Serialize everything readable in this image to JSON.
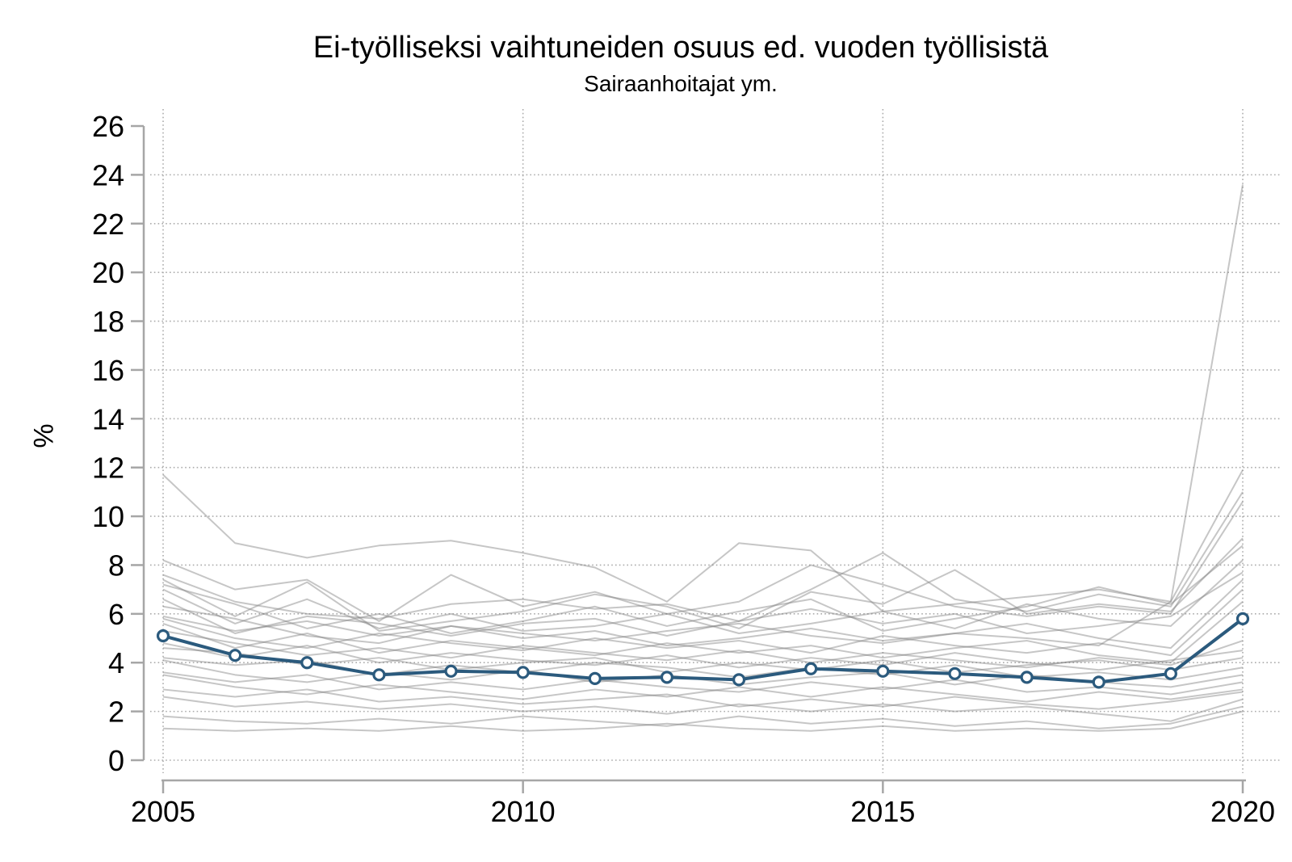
{
  "page": {
    "background": "#ffffff"
  },
  "chart_data": {
    "type": "line",
    "title": "Ei-työlliseksi vaihtuneiden osuus ed. vuoden työllisistä",
    "subtitle": "Sairaanhoitajat ym.",
    "ylabel": "%",
    "xlabel": "",
    "x": [
      2005,
      2006,
      2007,
      2008,
      2009,
      2010,
      2011,
      2012,
      2013,
      2014,
      2015,
      2016,
      2017,
      2018,
      2019,
      2020
    ],
    "x_tick_years": [
      2005,
      2010,
      2015,
      2020
    ],
    "x_tick_labels": [
      "2005",
      "2010",
      "2015",
      "2020"
    ],
    "y_ticks": [
      0,
      2,
      4,
      6,
      8,
      10,
      12,
      14,
      16,
      18,
      20,
      22,
      24,
      26
    ],
    "ylim": [
      0,
      26
    ],
    "xlim": [
      2005,
      2020
    ],
    "grid": "dotted",
    "legend_position": "none",
    "colors": {
      "highlight": "#2b5a7d",
      "background_lines": "#808080",
      "axis": "#a6a6a6",
      "grid_dots": "#ababab",
      "text": "#000000",
      "marker_fill": "#ffffff"
    },
    "highlight_series": {
      "name": "Sairaanhoitajat ym.",
      "values": [
        5.1,
        4.3,
        4.0,
        3.5,
        3.65,
        3.6,
        3.35,
        3.4,
        3.3,
        3.75,
        3.65,
        3.55,
        3.4,
        3.2,
        3.55,
        5.8
      ]
    },
    "background_series": [
      [
        11.7,
        8.9,
        8.3,
        8.8,
        9.0,
        8.5,
        7.9,
        6.5,
        8.9,
        8.6,
        6.1,
        6.4,
        6.7,
        7.0,
        6.5,
        11.9
      ],
      [
        5.9,
        5.3,
        5.7,
        5.1,
        5.5,
        5.2,
        4.9,
        5.3,
        5.6,
        5.1,
        4.8,
        5.2,
        5.0,
        4.7,
        6.5,
        23.6
      ],
      [
        8.2,
        7.0,
        7.4,
        5.7,
        7.6,
        6.3,
        6.9,
        6.0,
        6.5,
        8.0,
        7.2,
        6.3,
        5.9,
        6.3,
        6.0,
        10.6
      ],
      [
        7.6,
        6.5,
        6.0,
        5.8,
        6.4,
        6.6,
        6.2,
        6.4,
        5.7,
        7.0,
        8.5,
        6.6,
        6.1,
        6.8,
        6.3,
        11.0
      ],
      [
        7.4,
        5.9,
        7.3,
        5.3,
        5.7,
        6.1,
        6.8,
        6.3,
        5.4,
        6.9,
        6.4,
        7.8,
        6.0,
        6.4,
        6.1,
        9.1
      ],
      [
        7.2,
        6.4,
        5.4,
        6.0,
        5.2,
        5.7,
        6.3,
        5.5,
        6.1,
        6.6,
        5.3,
        5.8,
        6.3,
        7.1,
        6.4,
        8.8
      ],
      [
        7.0,
        5.6,
        6.6,
        5.4,
        6.0,
        5.3,
        5.5,
        6.0,
        5.2,
        5.6,
        6.1,
        5.4,
        6.4,
        5.8,
        5.5,
        8.2
      ],
      [
        6.6,
        5.2,
        5.9,
        5.6,
        5.1,
        5.6,
        5.8,
        5.1,
        5.7,
        6.2,
        5.6,
        6.0,
        5.2,
        5.5,
        5.9,
        7.7
      ],
      [
        6.3,
        5.8,
        5.1,
        4.8,
        5.5,
        5.0,
        5.3,
        4.7,
        5.0,
        5.4,
        4.9,
        5.2,
        5.6,
        5.0,
        4.6,
        7.4
      ],
      [
        5.8,
        5.0,
        4.6,
        5.2,
        4.8,
        4.5,
        5.0,
        4.6,
        4.9,
        4.4,
        5.1,
        4.7,
        4.4,
        4.8,
        4.3,
        7.0
      ],
      [
        5.6,
        4.6,
        5.2,
        4.4,
        4.9,
        4.6,
        4.3,
        4.8,
        4.4,
        4.7,
        4.2,
        4.6,
        4.9,
        4.3,
        4.0,
        6.5
      ],
      [
        5.3,
        4.8,
        4.3,
        4.6,
        4.2,
        4.7,
        4.4,
        4.1,
        4.5,
        4.0,
        4.4,
        4.1,
        3.8,
        4.2,
        3.9,
        4.9
      ],
      [
        4.8,
        4.2,
        4.7,
        4.0,
        4.4,
        4.1,
        3.9,
        4.3,
        3.8,
        4.2,
        3.9,
        4.4,
        4.0,
        3.7,
        4.1,
        4.5
      ],
      [
        4.6,
        4.4,
        3.9,
        4.2,
        3.7,
        4.0,
        4.2,
        3.6,
        4.0,
        3.7,
        4.1,
        3.6,
        3.9,
        4.1,
        3.7,
        4.2
      ],
      [
        4.2,
        3.9,
        4.1,
        3.5,
        3.9,
        3.6,
        4.0,
        3.8,
        3.4,
        3.8,
        3.5,
        3.9,
        3.4,
        3.6,
        3.3,
        3.8
      ],
      [
        4.1,
        3.5,
        3.2,
        3.6,
        3.3,
        3.7,
        3.2,
        3.5,
        3.1,
        3.4,
        3.6,
        3.1,
        3.5,
        3.2,
        3.0,
        3.5
      ],
      [
        3.6,
        3.2,
        3.5,
        2.9,
        3.2,
        2.9,
        3.3,
        3.0,
        2.8,
        3.2,
        2.9,
        3.3,
        2.8,
        3.0,
        2.7,
        3.2
      ],
      [
        3.5,
        3.0,
        2.7,
        3.1,
        2.8,
        2.5,
        2.9,
        2.6,
        3.0,
        2.6,
        3.0,
        2.7,
        2.4,
        2.8,
        2.5,
        2.9
      ],
      [
        2.9,
        2.6,
        2.9,
        2.4,
        2.6,
        2.3,
        2.5,
        2.7,
        2.2,
        2.5,
        2.2,
        2.6,
        2.3,
        2.1,
        2.4,
        2.8
      ],
      [
        2.6,
        2.2,
        2.4,
        2.1,
        2.3,
        2.0,
        2.2,
        1.9,
        2.3,
        2.0,
        2.3,
        2.0,
        2.2,
        1.9,
        1.6,
        2.5
      ],
      [
        1.8,
        1.6,
        1.5,
        1.7,
        1.5,
        1.8,
        1.6,
        1.4,
        1.8,
        1.5,
        1.7,
        1.4,
        1.6,
        1.3,
        1.5,
        2.2
      ],
      [
        1.3,
        1.2,
        1.3,
        1.2,
        1.4,
        1.2,
        1.3,
        1.5,
        1.3,
        1.2,
        1.4,
        1.2,
        1.3,
        1.2,
        1.3,
        2.0
      ]
    ]
  }
}
